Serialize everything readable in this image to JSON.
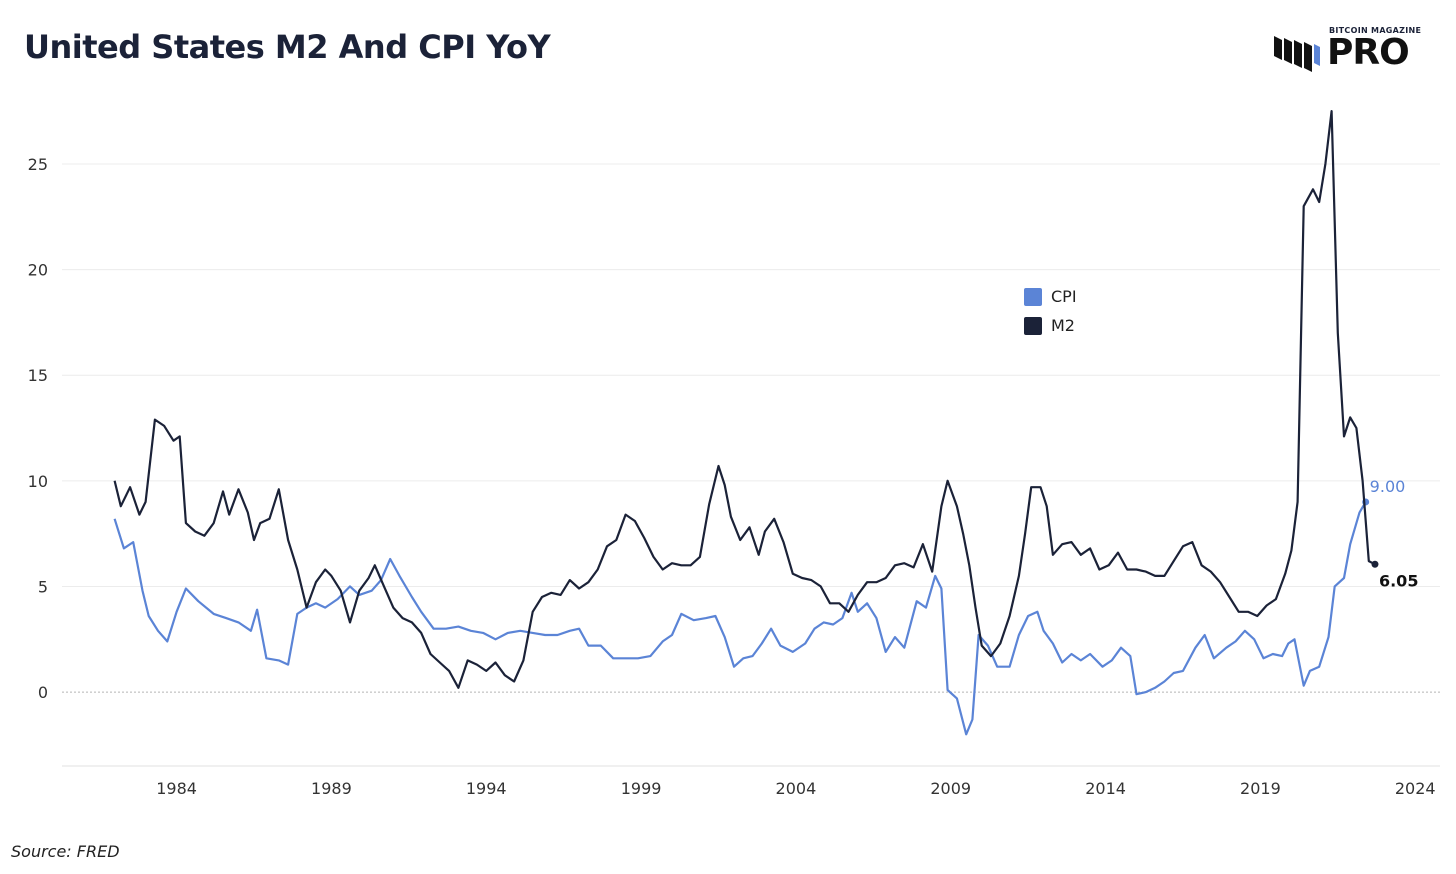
{
  "title": "United States M2 And CPI YoY",
  "source": "Source: FRED",
  "logo": {
    "top_text": "BITCOIN MAGAZINE",
    "main_text": "PRO"
  },
  "colors": {
    "cpi": "#5b84d6",
    "m2": "#1b2238",
    "grid": "#ececec",
    "zero_line": "#b5b5b5"
  },
  "chart_data": {
    "type": "line",
    "title": "United States M2 And CPI YoY",
    "xlabel": "",
    "ylabel": "",
    "x_ticks": [
      1984,
      1989,
      1994,
      1999,
      2004,
      2009,
      2014,
      2019,
      2024
    ],
    "y_ticks": [
      0,
      5,
      10,
      15,
      20,
      25
    ],
    "xlim": [
      1980.3,
      2024.8
    ],
    "ylim": [
      -3.5,
      28.5
    ],
    "grid": true,
    "legend": "upper-center-right",
    "series": [
      {
        "name": "CPI",
        "color": "#5b84d6",
        "end_label": "9.00",
        "points": [
          [
            1982.0,
            8.2
          ],
          [
            1982.3,
            6.8
          ],
          [
            1982.6,
            7.1
          ],
          [
            1982.9,
            4.8
          ],
          [
            1983.1,
            3.6
          ],
          [
            1983.4,
            2.9
          ],
          [
            1983.7,
            2.4
          ],
          [
            1984.0,
            3.8
          ],
          [
            1984.3,
            4.9
          ],
          [
            1984.7,
            4.3
          ],
          [
            1985.2,
            3.7
          ],
          [
            1985.6,
            3.5
          ],
          [
            1986.0,
            3.3
          ],
          [
            1986.4,
            2.9
          ],
          [
            1986.6,
            3.9
          ],
          [
            1986.9,
            1.6
          ],
          [
            1987.3,
            1.5
          ],
          [
            1987.6,
            1.3
          ],
          [
            1987.9,
            3.7
          ],
          [
            1988.2,
            4.0
          ],
          [
            1988.5,
            4.2
          ],
          [
            1988.8,
            4.0
          ],
          [
            1989.2,
            4.4
          ],
          [
            1989.6,
            5.0
          ],
          [
            1989.9,
            4.6
          ],
          [
            1990.3,
            4.8
          ],
          [
            1990.6,
            5.3
          ],
          [
            1990.9,
            6.3
          ],
          [
            1991.2,
            5.5
          ],
          [
            1991.6,
            4.5
          ],
          [
            1991.9,
            3.8
          ],
          [
            1992.3,
            3.0
          ],
          [
            1992.7,
            3.0
          ],
          [
            1993.1,
            3.1
          ],
          [
            1993.5,
            2.9
          ],
          [
            1993.9,
            2.8
          ],
          [
            1994.3,
            2.5
          ],
          [
            1994.7,
            2.8
          ],
          [
            1995.1,
            2.9
          ],
          [
            1995.5,
            2.8
          ],
          [
            1995.9,
            2.7
          ],
          [
            1996.3,
            2.7
          ],
          [
            1996.7,
            2.9
          ],
          [
            1997.0,
            3.0
          ],
          [
            1997.3,
            2.2
          ],
          [
            1997.7,
            2.2
          ],
          [
            1998.1,
            1.6
          ],
          [
            1998.5,
            1.6
          ],
          [
            1998.9,
            1.6
          ],
          [
            1999.3,
            1.7
          ],
          [
            1999.7,
            2.4
          ],
          [
            2000.0,
            2.7
          ],
          [
            2000.3,
            3.7
          ],
          [
            2000.7,
            3.4
          ],
          [
            2001.1,
            3.5
          ],
          [
            2001.4,
            3.6
          ],
          [
            2001.7,
            2.6
          ],
          [
            2002.0,
            1.2
          ],
          [
            2002.3,
            1.6
          ],
          [
            2002.6,
            1.7
          ],
          [
            2002.9,
            2.3
          ],
          [
            2003.2,
            3.0
          ],
          [
            2003.5,
            2.2
          ],
          [
            2003.9,
            1.9
          ],
          [
            2004.3,
            2.3
          ],
          [
            2004.6,
            3.0
          ],
          [
            2004.9,
            3.3
          ],
          [
            2005.2,
            3.2
          ],
          [
            2005.5,
            3.5
          ],
          [
            2005.8,
            4.7
          ],
          [
            2006.0,
            3.8
          ],
          [
            2006.3,
            4.2
          ],
          [
            2006.6,
            3.5
          ],
          [
            2006.9,
            1.9
          ],
          [
            2007.2,
            2.6
          ],
          [
            2007.5,
            2.1
          ],
          [
            2007.9,
            4.3
          ],
          [
            2008.2,
            4.0
          ],
          [
            2008.5,
            5.5
          ],
          [
            2008.7,
            4.9
          ],
          [
            2008.9,
            0.1
          ],
          [
            2009.2,
            -0.3
          ],
          [
            2009.5,
            -2.0
          ],
          [
            2009.7,
            -1.3
          ],
          [
            2009.9,
            2.7
          ],
          [
            2010.2,
            2.2
          ],
          [
            2010.5,
            1.2
          ],
          [
            2010.9,
            1.2
          ],
          [
            2011.2,
            2.7
          ],
          [
            2011.5,
            3.6
          ],
          [
            2011.8,
            3.8
          ],
          [
            2012.0,
            2.9
          ],
          [
            2012.3,
            2.3
          ],
          [
            2012.6,
            1.4
          ],
          [
            2012.9,
            1.8
          ],
          [
            2013.2,
            1.5
          ],
          [
            2013.5,
            1.8
          ],
          [
            2013.9,
            1.2
          ],
          [
            2014.2,
            1.5
          ],
          [
            2014.5,
            2.1
          ],
          [
            2014.8,
            1.7
          ],
          [
            2015.0,
            -0.1
          ],
          [
            2015.3,
            0.0
          ],
          [
            2015.6,
            0.2
          ],
          [
            2015.9,
            0.5
          ],
          [
            2016.2,
            0.9
          ],
          [
            2016.5,
            1.0
          ],
          [
            2016.9,
            2.1
          ],
          [
            2017.2,
            2.7
          ],
          [
            2017.5,
            1.6
          ],
          [
            2017.9,
            2.1
          ],
          [
            2018.2,
            2.4
          ],
          [
            2018.5,
            2.9
          ],
          [
            2018.8,
            2.5
          ],
          [
            2019.1,
            1.6
          ],
          [
            2019.4,
            1.8
          ],
          [
            2019.7,
            1.7
          ],
          [
            2019.9,
            2.3
          ],
          [
            2020.1,
            2.5
          ],
          [
            2020.4,
            0.3
          ],
          [
            2020.6,
            1.0
          ],
          [
            2020.9,
            1.2
          ],
          [
            2021.2,
            2.6
          ],
          [
            2021.4,
            5.0
          ],
          [
            2021.7,
            5.4
          ],
          [
            2021.9,
            7.0
          ],
          [
            2022.2,
            8.5
          ],
          [
            2022.4,
            9.0
          ]
        ]
      },
      {
        "name": "M2",
        "color": "#1b2238",
        "end_label": "6.05",
        "points": [
          [
            1982.0,
            10.0
          ],
          [
            1982.2,
            8.8
          ],
          [
            1982.5,
            9.7
          ],
          [
            1982.8,
            8.4
          ],
          [
            1983.0,
            9.0
          ],
          [
            1983.3,
            12.9
          ],
          [
            1983.6,
            12.6
          ],
          [
            1983.9,
            11.9
          ],
          [
            1984.1,
            12.1
          ],
          [
            1984.3,
            8.0
          ],
          [
            1984.6,
            7.6
          ],
          [
            1984.9,
            7.4
          ],
          [
            1985.2,
            8.0
          ],
          [
            1985.5,
            9.5
          ],
          [
            1985.7,
            8.4
          ],
          [
            1986.0,
            9.6
          ],
          [
            1986.3,
            8.5
          ],
          [
            1986.5,
            7.2
          ],
          [
            1986.7,
            8.0
          ],
          [
            1987.0,
            8.2
          ],
          [
            1987.3,
            9.6
          ],
          [
            1987.6,
            7.2
          ],
          [
            1987.9,
            5.8
          ],
          [
            1988.2,
            4.0
          ],
          [
            1988.5,
            5.2
          ],
          [
            1988.8,
            5.8
          ],
          [
            1989.0,
            5.5
          ],
          [
            1989.3,
            4.8
          ],
          [
            1989.6,
            3.3
          ],
          [
            1989.9,
            4.8
          ],
          [
            1990.2,
            5.4
          ],
          [
            1990.4,
            6.0
          ],
          [
            1990.7,
            5.0
          ],
          [
            1991.0,
            4.0
          ],
          [
            1991.3,
            3.5
          ],
          [
            1991.6,
            3.3
          ],
          [
            1991.9,
            2.8
          ],
          [
            1992.2,
            1.8
          ],
          [
            1992.5,
            1.4
          ],
          [
            1992.8,
            1.0
          ],
          [
            1993.1,
            0.2
          ],
          [
            1993.4,
            1.5
          ],
          [
            1993.7,
            1.3
          ],
          [
            1994.0,
            1.0
          ],
          [
            1994.3,
            1.4
          ],
          [
            1994.6,
            0.8
          ],
          [
            1994.9,
            0.5
          ],
          [
            1995.2,
            1.5
          ],
          [
            1995.5,
            3.8
          ],
          [
            1995.8,
            4.5
          ],
          [
            1996.1,
            4.7
          ],
          [
            1996.4,
            4.6
          ],
          [
            1996.7,
            5.3
          ],
          [
            1997.0,
            4.9
          ],
          [
            1997.3,
            5.2
          ],
          [
            1997.6,
            5.8
          ],
          [
            1997.9,
            6.9
          ],
          [
            1998.2,
            7.2
          ],
          [
            1998.5,
            8.4
          ],
          [
            1998.8,
            8.1
          ],
          [
            1999.1,
            7.3
          ],
          [
            1999.4,
            6.4
          ],
          [
            1999.7,
            5.8
          ],
          [
            2000.0,
            6.1
          ],
          [
            2000.3,
            6.0
          ],
          [
            2000.6,
            6.0
          ],
          [
            2000.9,
            6.4
          ],
          [
            2001.2,
            8.9
          ],
          [
            2001.5,
            10.7
          ],
          [
            2001.7,
            9.8
          ],
          [
            2001.9,
            8.3
          ],
          [
            2002.2,
            7.2
          ],
          [
            2002.5,
            7.8
          ],
          [
            2002.8,
            6.5
          ],
          [
            2003.0,
            7.6
          ],
          [
            2003.3,
            8.2
          ],
          [
            2003.6,
            7.1
          ],
          [
            2003.9,
            5.6
          ],
          [
            2004.2,
            5.4
          ],
          [
            2004.5,
            5.3
          ],
          [
            2004.8,
            5.0
          ],
          [
            2005.1,
            4.2
          ],
          [
            2005.4,
            4.2
          ],
          [
            2005.7,
            3.8
          ],
          [
            2006.0,
            4.6
          ],
          [
            2006.3,
            5.2
          ],
          [
            2006.6,
            5.2
          ],
          [
            2006.9,
            5.4
          ],
          [
            2007.2,
            6.0
          ],
          [
            2007.5,
            6.1
          ],
          [
            2007.8,
            5.9
          ],
          [
            2008.1,
            7.0
          ],
          [
            2008.4,
            5.7
          ],
          [
            2008.7,
            8.8
          ],
          [
            2008.9,
            10.0
          ],
          [
            2009.2,
            8.8
          ],
          [
            2009.4,
            7.5
          ],
          [
            2009.6,
            6.0
          ],
          [
            2009.8,
            4.0
          ],
          [
            2010.0,
            2.2
          ],
          [
            2010.3,
            1.7
          ],
          [
            2010.6,
            2.3
          ],
          [
            2010.9,
            3.6
          ],
          [
            2011.2,
            5.5
          ],
          [
            2011.4,
            7.5
          ],
          [
            2011.6,
            9.7
          ],
          [
            2011.9,
            9.7
          ],
          [
            2012.1,
            8.8
          ],
          [
            2012.3,
            6.5
          ],
          [
            2012.6,
            7.0
          ],
          [
            2012.9,
            7.1
          ],
          [
            2013.2,
            6.5
          ],
          [
            2013.5,
            6.8
          ],
          [
            2013.8,
            5.8
          ],
          [
            2014.1,
            6.0
          ],
          [
            2014.4,
            6.6
          ],
          [
            2014.7,
            5.8
          ],
          [
            2015.0,
            5.8
          ],
          [
            2015.3,
            5.7
          ],
          [
            2015.6,
            5.5
          ],
          [
            2015.9,
            5.5
          ],
          [
            2016.2,
            6.2
          ],
          [
            2016.5,
            6.9
          ],
          [
            2016.8,
            7.1
          ],
          [
            2017.1,
            6.0
          ],
          [
            2017.4,
            5.7
          ],
          [
            2017.7,
            5.2
          ],
          [
            2018.0,
            4.5
          ],
          [
            2018.3,
            3.8
          ],
          [
            2018.6,
            3.8
          ],
          [
            2018.9,
            3.6
          ],
          [
            2019.2,
            4.1
          ],
          [
            2019.5,
            4.4
          ],
          [
            2019.8,
            5.6
          ],
          [
            2020.0,
            6.7
          ],
          [
            2020.2,
            9.0
          ],
          [
            2020.4,
            23.0
          ],
          [
            2020.7,
            23.8
          ],
          [
            2020.9,
            23.2
          ],
          [
            2021.1,
            25.0
          ],
          [
            2021.3,
            27.5
          ],
          [
            2021.5,
            17.0
          ],
          [
            2021.7,
            12.1
          ],
          [
            2021.9,
            13.0
          ],
          [
            2022.1,
            12.5
          ],
          [
            2022.3,
            10.0
          ],
          [
            2022.5,
            6.2
          ],
          [
            2022.7,
            6.05
          ]
        ]
      }
    ]
  }
}
